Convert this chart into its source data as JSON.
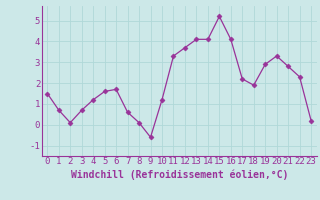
{
  "x": [
    0,
    1,
    2,
    3,
    4,
    5,
    6,
    7,
    8,
    9,
    10,
    11,
    12,
    13,
    14,
    15,
    16,
    17,
    18,
    19,
    20,
    21,
    22,
    23
  ],
  "y": [
    1.5,
    0.7,
    0.1,
    0.7,
    1.2,
    1.6,
    1.7,
    0.6,
    0.1,
    -0.6,
    1.2,
    3.3,
    3.7,
    4.1,
    4.1,
    5.2,
    4.1,
    2.2,
    1.9,
    2.9,
    3.3,
    2.8,
    2.3,
    0.2
  ],
  "line_color": "#993399",
  "marker": "D",
  "marker_size": 2.5,
  "xlabel": "Windchill (Refroidissement éolien,°C)",
  "xlim": [
    -0.5,
    23.5
  ],
  "ylim": [
    -1.5,
    5.7
  ],
  "yticks": [
    -1,
    0,
    1,
    2,
    3,
    4,
    5
  ],
  "xticks": [
    0,
    1,
    2,
    3,
    4,
    5,
    6,
    7,
    8,
    9,
    10,
    11,
    12,
    13,
    14,
    15,
    16,
    17,
    18,
    19,
    20,
    21,
    22,
    23
  ],
  "bg_color": "#cce8e8",
  "grid_color": "#b0d8d8",
  "tick_color": "#993399",
  "label_color": "#993399",
  "font_size": 6.5,
  "xlabel_fontsize": 7.0
}
